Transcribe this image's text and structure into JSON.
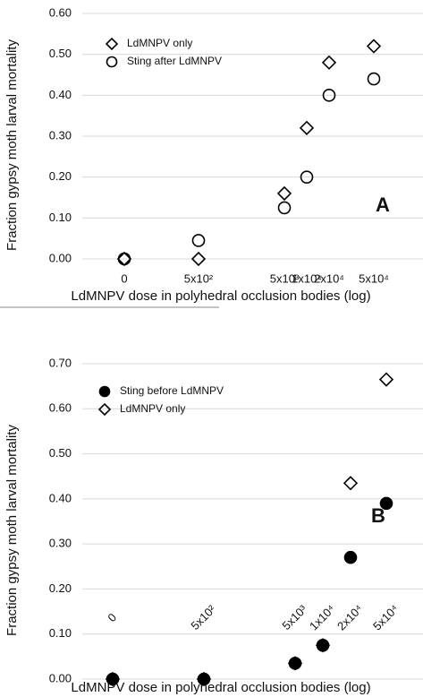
{
  "chart_data": [
    {
      "type": "scatter",
      "x_label": "LdMNPV dose in polyhedral occlusion bodies (log)",
      "y_label": "Fraction gypsy moth larval mortality",
      "annotation": "A",
      "categories": [
        "0",
        "5x10²",
        "5x10³",
        "1x10⁴",
        "2x10⁴",
        "5x10⁴"
      ],
      "series": [
        {
          "name": "LdMNPV only",
          "color": "#000000",
          "marker": "diamond",
          "filled": false,
          "values": [
            0,
            0,
            0.16,
            0.32,
            0.48,
            0.52
          ]
        },
        {
          "name": "Sting after LdMNPV",
          "color": "#000000",
          "marker": "circle",
          "filled": false,
          "values": [
            0,
            0.045,
            0.125,
            0.2,
            0.4,
            0.44
          ]
        }
      ],
      "ylim": [
        0,
        0.6
      ],
      "yticks": [
        {
          "value": 0,
          "label": "0.00"
        },
        {
          "value": 0.1,
          "label": "0.10"
        },
        {
          "value": 0.2,
          "label": "0.20"
        },
        {
          "value": 0.3,
          "label": "0.30"
        },
        {
          "value": 0.4,
          "label": "0.40"
        },
        {
          "value": 0.5,
          "label": "0.50"
        },
        {
          "value": 0.6,
          "label": "0.60"
        }
      ],
      "grid": true,
      "legend": "upper left"
    },
    {
      "type": "scatter",
      "x_label": "LdMNPV dose in polyhedral occlusion bodies (log)",
      "y_label": "Fraction gypsy moth larval mortality",
      "annotation": "B",
      "categories": [
        "0",
        "5x10²",
        "5x10³",
        "1x10⁴",
        "2x10⁴",
        "5x10⁴"
      ],
      "series": [
        {
          "name": "Sting before LdMNPV",
          "color": "#000000",
          "marker": "circle",
          "filled": true,
          "values": [
            0,
            0,
            0.035,
            0.075,
            0.27,
            0.39
          ]
        },
        {
          "name": "LdMNPV only",
          "color": "#000000",
          "marker": "diamond",
          "filled": false,
          "values": [
            0,
            0,
            0.035,
            0.075,
            0.435,
            0.665
          ]
        }
      ],
      "ylim": [
        0,
        0.7
      ],
      "yticks": [
        {
          "value": 0,
          "label": "0.00"
        },
        {
          "value": 0.1,
          "label": "0.10"
        },
        {
          "value": 0.2,
          "label": "0.20"
        },
        {
          "value": 0.3,
          "label": "0.30"
        },
        {
          "value": 0.4,
          "label": "0.40"
        },
        {
          "value": 0.5,
          "label": "0.50"
        },
        {
          "value": 0.6,
          "label": "0.60"
        },
        {
          "value": 0.7,
          "label": "0.70"
        }
      ],
      "grid": true,
      "legend": "upper left"
    }
  ]
}
